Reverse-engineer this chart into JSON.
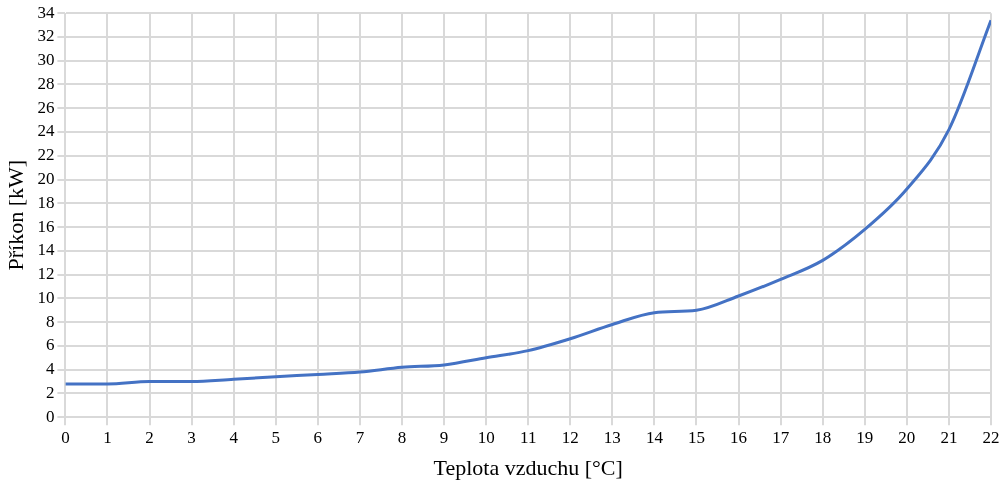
{
  "chart_data": {
    "type": "line",
    "xlabel": "Teplota vzduchu [°C]",
    "ylabel": "Příkon [kW]",
    "x": [
      0,
      1,
      2,
      3,
      4,
      5,
      6,
      7,
      8,
      9,
      10,
      11,
      12,
      13,
      14,
      15,
      16,
      17,
      18,
      19,
      20,
      21,
      22
    ],
    "series": [
      {
        "color": "#4472c4",
        "values": [
          2.8,
          2.8,
          3.0,
          3.0,
          3.2,
          3.4,
          3.6,
          3.8,
          4.2,
          4.4,
          5.0,
          5.6,
          6.6,
          7.8,
          8.8,
          9.0,
          10.2,
          11.6,
          13.2,
          15.8,
          19.2,
          24.2,
          33.4
        ]
      }
    ],
    "xlim": [
      0,
      22
    ],
    "xticks": [
      0,
      1,
      2,
      3,
      4,
      5,
      6,
      7,
      8,
      9,
      10,
      11,
      12,
      13,
      14,
      15,
      16,
      17,
      18,
      19,
      20,
      21,
      22
    ],
    "ylim": [
      0,
      34
    ],
    "yticks": [
      0,
      2,
      4,
      6,
      8,
      10,
      12,
      14,
      16,
      18,
      20,
      22,
      24,
      26,
      28,
      30,
      32,
      34
    ],
    "grid": true,
    "legend": false,
    "marker": "none",
    "line_style": "solid"
  }
}
